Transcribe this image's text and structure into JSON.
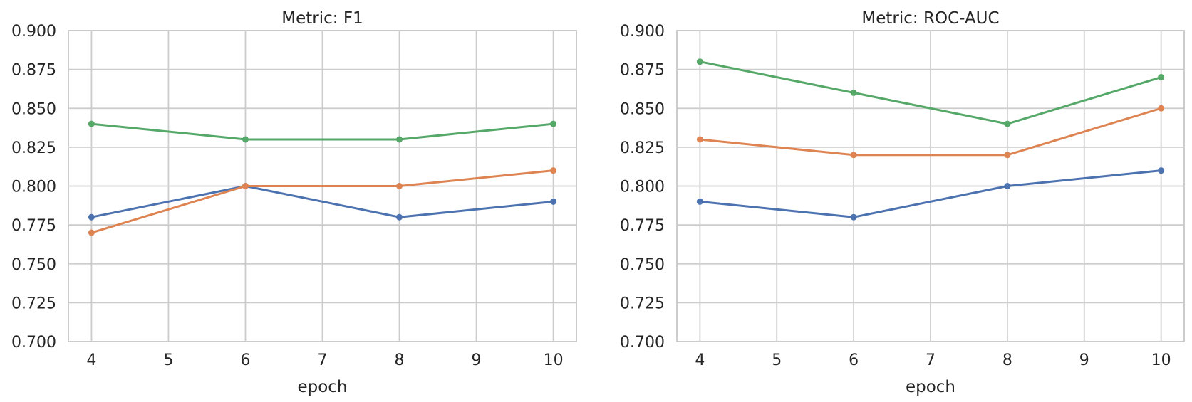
{
  "figure": {
    "background": "#ffffff",
    "text_color": "#262626",
    "grid_color": "#cccccc"
  },
  "chart_data": [
    {
      "type": "line",
      "title": "Metric: F1",
      "xlabel": "epoch",
      "ylabel": "",
      "x": [
        4,
        6,
        8,
        10
      ],
      "series": [
        {
          "name": "series-blue",
          "color": "#4C72B0",
          "values": [
            0.78,
            0.8,
            0.78,
            0.79
          ]
        },
        {
          "name": "series-orange",
          "color": "#DD8452",
          "values": [
            0.77,
            0.8,
            0.8,
            0.81
          ]
        },
        {
          "name": "series-green",
          "color": "#55A868",
          "values": [
            0.84,
            0.83,
            0.83,
            0.84
          ]
        }
      ],
      "xlim": [
        3.7,
        10.3
      ],
      "ylim": [
        0.7,
        0.9
      ],
      "xticks": {
        "values": [
          4,
          5,
          6,
          7,
          8,
          9,
          10
        ],
        "labels": [
          "4",
          "5",
          "6",
          "7",
          "8",
          "9",
          "10"
        ]
      },
      "yticks": {
        "values": [
          0.7,
          0.725,
          0.75,
          0.775,
          0.8,
          0.825,
          0.85,
          0.875,
          0.9
        ],
        "labels": [
          "0.700",
          "0.725",
          "0.750",
          "0.775",
          "0.800",
          "0.825",
          "0.850",
          "0.875",
          "0.900"
        ]
      },
      "grid": true,
      "legend": "none",
      "marker": "circle"
    },
    {
      "type": "line",
      "title": "Metric: ROC-AUC",
      "xlabel": "epoch",
      "ylabel": "",
      "x": [
        4,
        6,
        8,
        10
      ],
      "series": [
        {
          "name": "series-blue",
          "color": "#4C72B0",
          "values": [
            0.79,
            0.78,
            0.8,
            0.81
          ]
        },
        {
          "name": "series-orange",
          "color": "#DD8452",
          "values": [
            0.83,
            0.82,
            0.82,
            0.85
          ]
        },
        {
          "name": "series-green",
          "color": "#55A868",
          "values": [
            0.88,
            0.86,
            0.84,
            0.87
          ]
        }
      ],
      "xlim": [
        3.7,
        10.3
      ],
      "ylim": [
        0.7,
        0.9
      ],
      "xticks": {
        "values": [
          4,
          5,
          6,
          7,
          8,
          9,
          10
        ],
        "labels": [
          "4",
          "5",
          "6",
          "7",
          "8",
          "9",
          "10"
        ]
      },
      "yticks": {
        "values": [
          0.7,
          0.725,
          0.75,
          0.775,
          0.8,
          0.825,
          0.85,
          0.875,
          0.9
        ],
        "labels": [
          "0.700",
          "0.725",
          "0.750",
          "0.775",
          "0.800",
          "0.825",
          "0.850",
          "0.875",
          "0.900"
        ]
      },
      "grid": true,
      "legend": "none",
      "marker": "circle"
    }
  ]
}
